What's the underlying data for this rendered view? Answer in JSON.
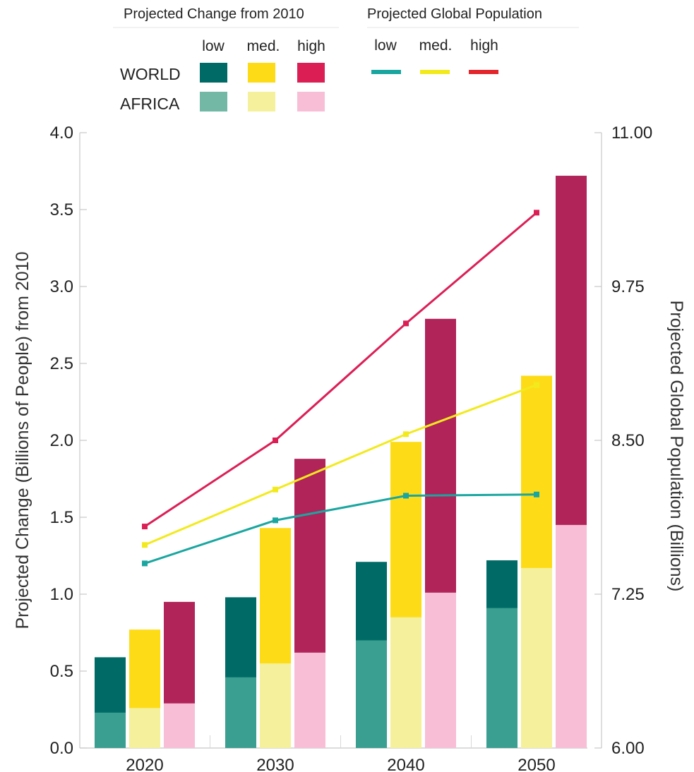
{
  "chart_data": {
    "type": "bar",
    "categories": [
      "2020",
      "2030",
      "2040",
      "2050"
    ],
    "y_left": {
      "label": "Projected  Change (Billions of People) from 2010",
      "range": [
        0,
        4
      ],
      "ticks": [
        "0.0",
        "0.5",
        "1.0",
        "1.5",
        "2.0",
        "2.5",
        "3.0",
        "3.5",
        "4.0"
      ]
    },
    "y_right": {
      "label": "Projected Global Population (Billions)",
      "range": [
        6,
        11
      ],
      "ticks": [
        "6.00",
        "7.25",
        "8.50",
        "9.75",
        "11.00"
      ]
    },
    "bar_series": [
      {
        "variant": "low",
        "world": [
          0.59,
          0.98,
          1.21,
          1.22
        ],
        "africa": [
          0.23,
          0.46,
          0.7,
          0.91
        ]
      },
      {
        "variant": "med.",
        "world": [
          0.77,
          1.43,
          1.99,
          2.42
        ],
        "africa": [
          0.26,
          0.55,
          0.85,
          1.17
        ]
      },
      {
        "variant": "high",
        "world": [
          0.95,
          1.88,
          2.79,
          3.72
        ],
        "africa": [
          0.29,
          0.62,
          1.01,
          1.45
        ]
      }
    ],
    "line_series": [
      {
        "variant": "low",
        "values": [
          7.5,
          7.85,
          8.05,
          8.06
        ]
      },
      {
        "variant": "med.",
        "values": [
          7.65,
          8.1,
          8.55,
          8.95
        ]
      },
      {
        "variant": "high",
        "values": [
          7.8,
          8.5,
          9.45,
          10.35
        ]
      }
    ],
    "colors": {
      "world": [
        "#006b66",
        "#fddc17",
        "#b0245a"
      ],
      "africa": [
        "#3a9e90",
        "#f4f09c",
        "#f8bed6"
      ],
      "lines": [
        "#1aa6a0",
        "#f2ea1d",
        "#db1f55"
      ]
    },
    "legend": {
      "bars_title": "Projected Change from 2010",
      "lines_title": "Projected Global Population",
      "variants": [
        "low",
        "med.",
        "high"
      ],
      "rows": [
        "WORLD",
        "AFRICA"
      ],
      "legend_world_colors": [
        "#006b66",
        "#fddc17",
        "#db1f55"
      ],
      "legend_africa_colors": [
        "#73b8a5",
        "#f4f09c",
        "#f8bed6"
      ],
      "legend_line_colors": [
        "#1aa6a0",
        "#f2ea1d",
        "#e3262b"
      ]
    }
  }
}
